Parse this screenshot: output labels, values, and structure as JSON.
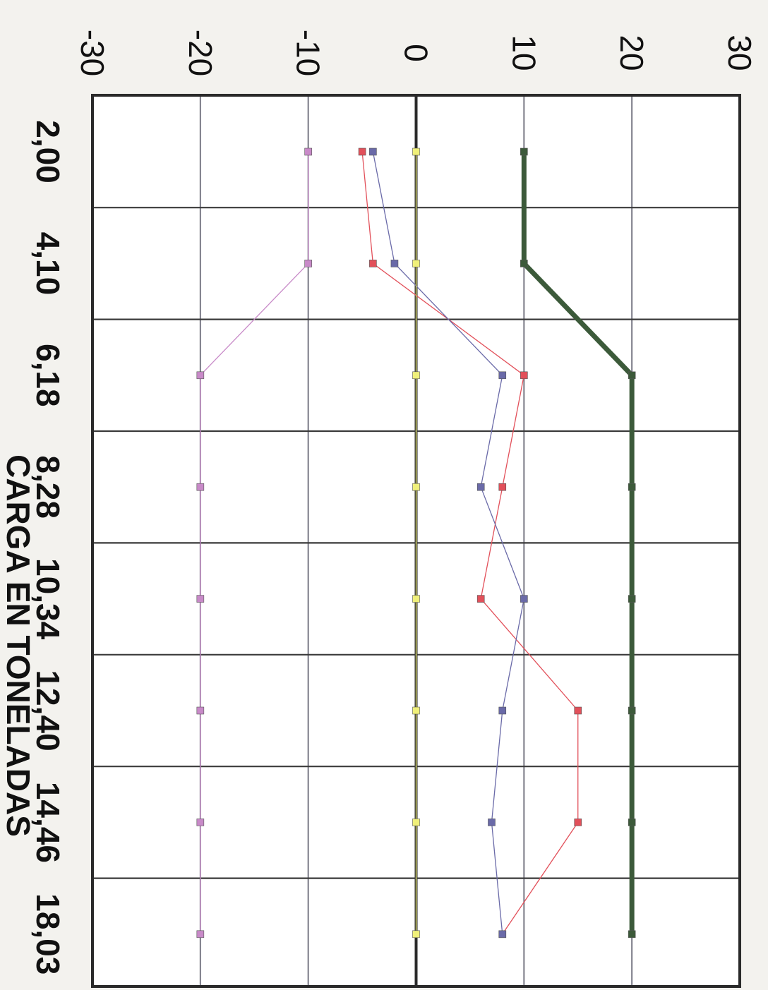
{
  "chart_data": {
    "type": "line",
    "orientation": "rotated-90-clockwise",
    "xlabel": "CARGA EN TONELADAS",
    "ylabel": "",
    "ylim": [
      -30,
      30
    ],
    "yticks": [
      -30,
      -20,
      -10,
      0,
      10,
      20,
      30
    ],
    "ytick_labels": [
      "-30",
      "-20",
      "-10",
      "0",
      "10",
      "20",
      "30"
    ],
    "categories": [
      "2,00",
      "4,10",
      "6,18",
      "8,28",
      "10,34",
      "12,40",
      "14,46",
      "18,03"
    ],
    "grid": true,
    "legend": "none",
    "series": [
      {
        "color": "#3c5a3a",
        "values": [
          10,
          10,
          20,
          20,
          20,
          20,
          20,
          20
        ]
      },
      {
        "color": "#e2505a",
        "values": [
          -5,
          -4,
          10,
          8,
          6,
          15,
          15,
          8
        ]
      },
      {
        "color": "#6a6aa8",
        "values": [
          -4,
          -2,
          8,
          6,
          10,
          8,
          7,
          8
        ]
      },
      {
        "color": "#f0f07a",
        "values": [
          0,
          0,
          0,
          0,
          0,
          0,
          0,
          0
        ]
      },
      {
        "color": "#c88ac8",
        "values": [
          -10,
          -10,
          -20,
          -20,
          -20,
          -20,
          -20,
          -20
        ]
      }
    ]
  }
}
